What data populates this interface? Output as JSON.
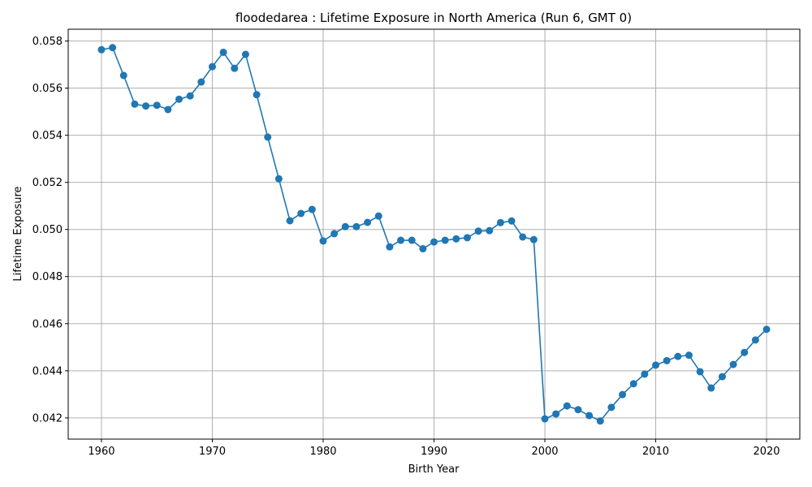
{
  "chart_data": {
    "type": "line",
    "title": "floodedarea : Lifetime Exposure in North America (Run 6, GMT 0)",
    "xlabel": "Birth Year",
    "ylabel": "Lifetime Exposure",
    "xlim": [
      1957,
      2023
    ],
    "ylim": [
      0.0411,
      0.0585
    ],
    "xticks": [
      1960,
      1970,
      1980,
      1990,
      2000,
      2010,
      2020
    ],
    "xtick_labels": [
      "1960",
      "1970",
      "1980",
      "1990",
      "2000",
      "2010",
      "2020"
    ],
    "yticks": [
      0.042,
      0.044,
      0.046,
      0.048,
      0.05,
      0.052,
      0.054,
      0.056,
      0.058
    ],
    "ytick_labels": [
      "0.042",
      "0.044",
      "0.046",
      "0.048",
      "0.050",
      "0.052",
      "0.054",
      "0.056",
      "0.058"
    ],
    "grid": true,
    "color": "#1f77b4",
    "marker": "circle",
    "series": [
      {
        "x": [
          1960,
          1961,
          1962,
          1963,
          1964,
          1965,
          1966,
          1967,
          1968,
          1969,
          1970,
          1971,
          1972,
          1973,
          1974,
          1975,
          1976,
          1977,
          1978,
          1979,
          1980,
          1981,
          1982,
          1983,
          1984,
          1985,
          1986,
          1987,
          1988,
          1989,
          1990,
          1991,
          1992,
          1993,
          1994,
          1995,
          1996,
          1997,
          1998,
          1999,
          2000,
          2001,
          2002,
          2003,
          2004,
          2005,
          2006,
          2007,
          2008,
          2009,
          2010,
          2011,
          2012,
          2013,
          2014,
          2015,
          2016,
          2017,
          2018,
          2019,
          2020
        ],
        "values": [
          0.05763,
          0.05772,
          0.05654,
          0.05532,
          0.05524,
          0.05527,
          0.05509,
          0.05553,
          0.05567,
          0.05626,
          0.05691,
          0.05752,
          0.05684,
          0.05743,
          0.05572,
          0.05392,
          0.05215,
          0.05037,
          0.05068,
          0.05085,
          0.04951,
          0.04982,
          0.05012,
          0.05012,
          0.0503,
          0.05057,
          0.04926,
          0.04954,
          0.04954,
          0.04918,
          0.04947,
          0.04954,
          0.0496,
          0.04965,
          0.04993,
          0.04995,
          0.05029,
          0.05036,
          0.04968,
          0.04957,
          0.04196,
          0.04217,
          0.04251,
          0.04235,
          0.0421,
          0.04187,
          0.04245,
          0.04299,
          0.04345,
          0.04386,
          0.04424,
          0.04443,
          0.04461,
          0.04466,
          0.04396,
          0.04327,
          0.04375,
          0.04427,
          0.04478,
          0.04531,
          0.04576
        ]
      }
    ]
  }
}
